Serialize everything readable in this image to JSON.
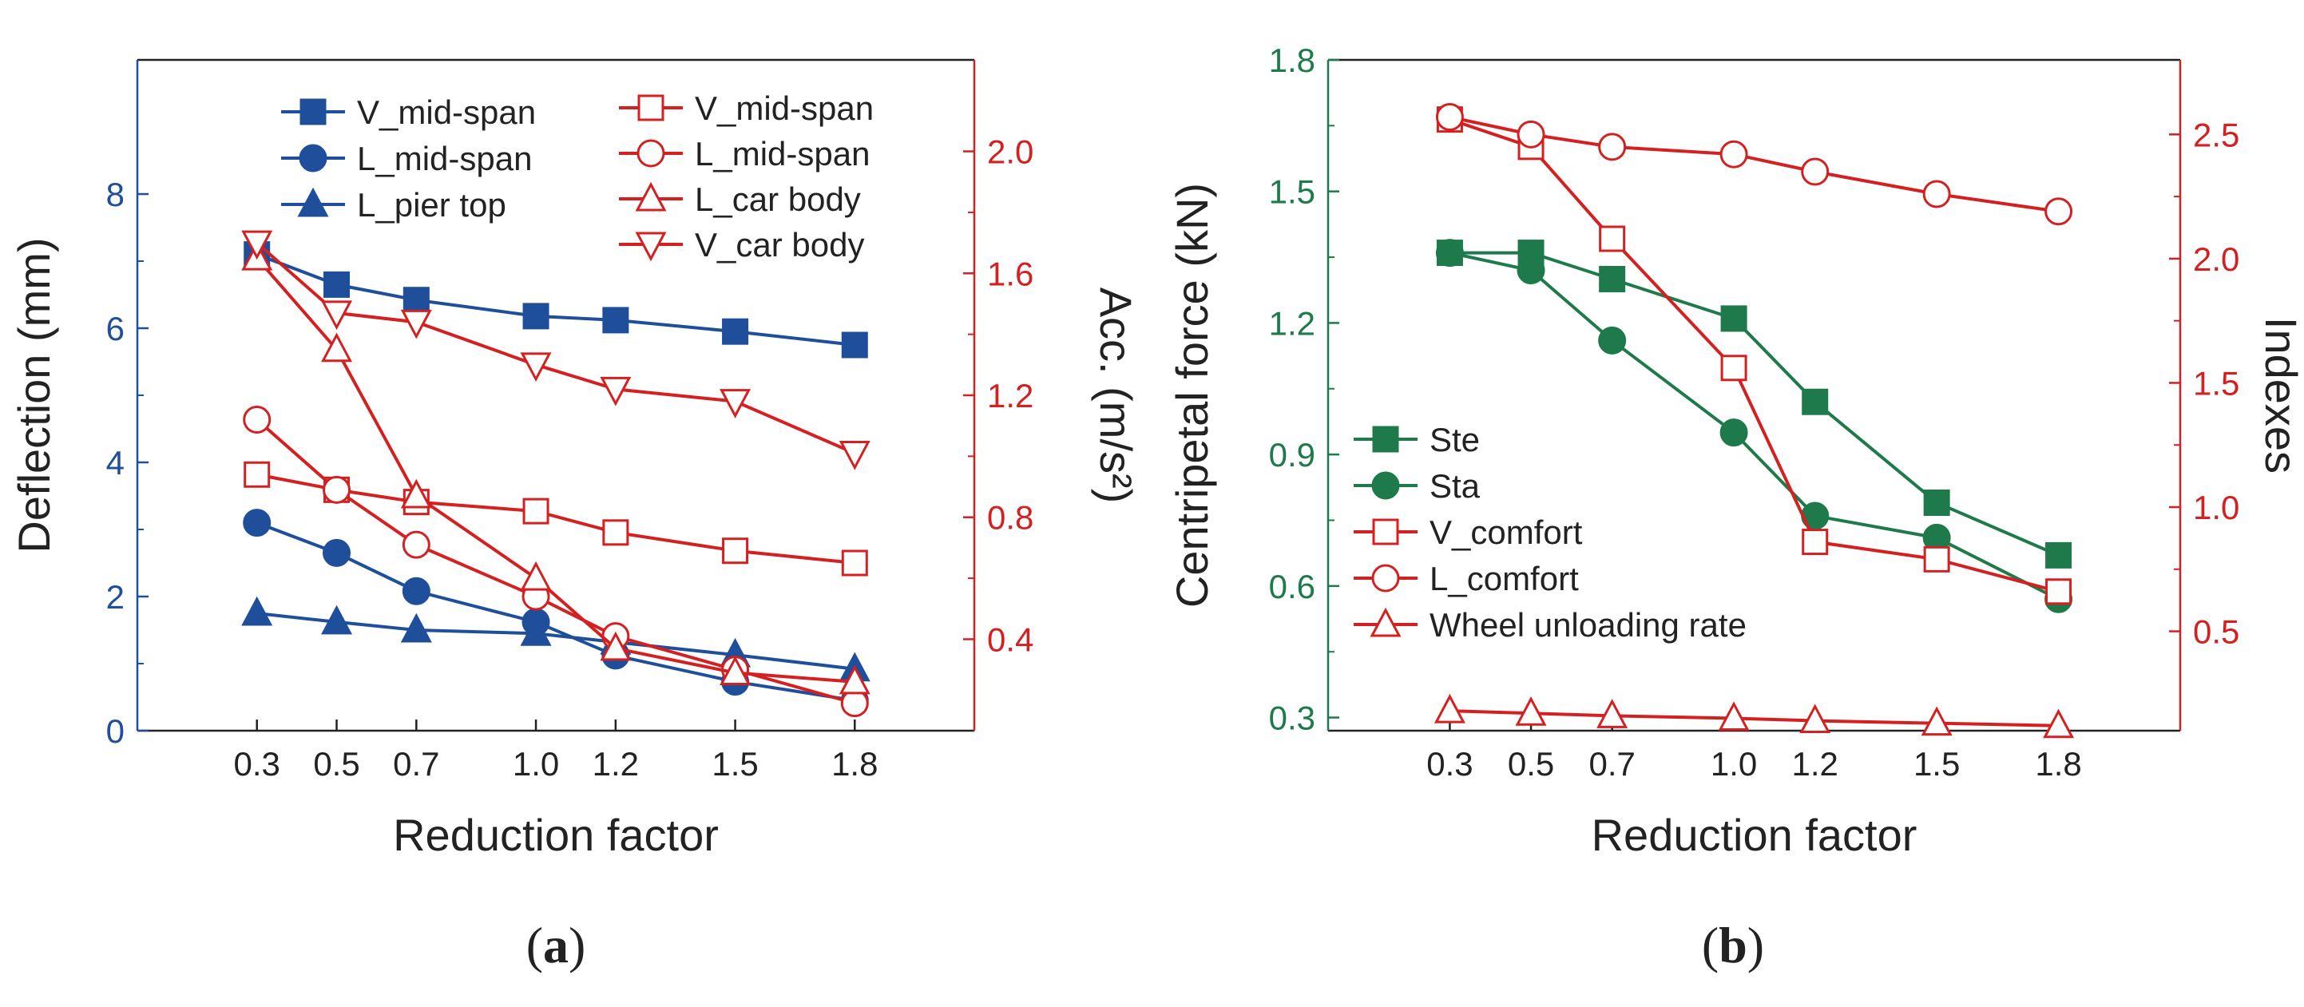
{
  "colors": {
    "blue": "#1f4e9b",
    "red": "#d42020",
    "green": "#1e7a4a",
    "black": "#222222"
  },
  "chart_data": [
    {
      "id": "a",
      "type": "line",
      "caption": "a",
      "xlabel": "Reduction factor",
      "ylabel_left": "Deflection (mm)",
      "ylabel_right": "Acc. (m/s²)",
      "x": [
        0.3,
        0.5,
        0.7,
        1.0,
        1.2,
        1.5,
        1.8
      ],
      "xticks": [
        "0.3",
        "0.5",
        "0.7",
        "1.0",
        "1.2",
        "1.5",
        "1.8"
      ],
      "ylim_left": [
        0,
        10
      ],
      "yticks_left": [
        "0",
        "2",
        "4",
        "6",
        "8"
      ],
      "ylim_right": [
        0.1,
        2.3
      ],
      "yticks_right": [
        "0.4",
        "0.8",
        "1.2",
        "1.6",
        "2.0"
      ],
      "series": [
        {
          "name": "V_mid-span",
          "axis": "left",
          "marker": "square",
          "filled": true,
          "color": "blue",
          "values": [
            7.1,
            6.65,
            6.42,
            6.18,
            6.12,
            5.95,
            5.75
          ]
        },
        {
          "name": "L_mid-span",
          "axis": "left",
          "marker": "circle",
          "filled": true,
          "color": "blue",
          "values": [
            3.1,
            2.65,
            2.08,
            1.62,
            1.12,
            0.73,
            0.45
          ]
        },
        {
          "name": "L_pier top",
          "axis": "left",
          "marker": "triangle-up",
          "filled": true,
          "color": "blue",
          "values": [
            1.75,
            1.62,
            1.5,
            1.45,
            1.32,
            1.13,
            0.92
          ]
        },
        {
          "name": "V_mid-span",
          "axis": "right",
          "marker": "square",
          "filled": false,
          "color": "red",
          "values": [
            0.94,
            0.89,
            0.85,
            0.82,
            0.75,
            0.69,
            0.65
          ]
        },
        {
          "name": "L_mid-span",
          "axis": "right",
          "marker": "circle",
          "filled": false,
          "color": "red",
          "values": [
            1.12,
            0.89,
            0.71,
            0.54,
            0.41,
            0.3,
            0.19
          ]
        },
        {
          "name": "L_car body",
          "axis": "right",
          "marker": "triangle-up",
          "filled": false,
          "color": "red",
          "values": [
            1.65,
            1.35,
            0.87,
            0.6,
            0.37,
            0.29,
            0.26
          ]
        },
        {
          "name": "V_car body",
          "axis": "right",
          "marker": "triangle-down",
          "filled": false,
          "color": "red",
          "values": [
            1.7,
            1.47,
            1.44,
            1.3,
            1.22,
            1.18,
            1.01
          ]
        }
      ]
    },
    {
      "id": "b",
      "type": "line",
      "caption": "b",
      "xlabel": "Reduction factor",
      "ylabel_left": "Centripetal force (kN)",
      "ylabel_right": "Indexes",
      "x": [
        0.3,
        0.5,
        0.7,
        1.0,
        1.2,
        1.5,
        1.8
      ],
      "xticks": [
        "0.3",
        "0.5",
        "0.7",
        "1.0",
        "1.2",
        "1.5",
        "1.8"
      ],
      "ylim_left": [
        0.27,
        1.8
      ],
      "yticks_left": [
        "0.3",
        "0.6",
        "0.9",
        "1.2",
        "1.5",
        "1.8"
      ],
      "ylim_right": [
        0.1,
        2.8
      ],
      "yticks_right": [
        "0.5",
        "1.0",
        "1.5",
        "2.0",
        "2.5"
      ],
      "series": [
        {
          "name": "Ste",
          "axis": "left",
          "marker": "square",
          "filled": true,
          "color": "green",
          "values": [
            1.36,
            1.36,
            1.3,
            1.21,
            1.02,
            0.79,
            0.67
          ]
        },
        {
          "name": "Sta",
          "axis": "left",
          "marker": "circle",
          "filled": true,
          "color": "green",
          "values": [
            1.36,
            1.32,
            1.16,
            0.95,
            0.76,
            0.71,
            0.57
          ]
        },
        {
          "name": "V_comfort",
          "axis": "right",
          "marker": "square",
          "filled": false,
          "color": "red",
          "values": [
            2.56,
            2.45,
            2.08,
            1.56,
            0.86,
            0.79,
            0.66
          ]
        },
        {
          "name": "L_comfort",
          "axis": "right",
          "marker": "circle",
          "filled": false,
          "color": "red",
          "values": [
            2.57,
            2.5,
            2.45,
            2.42,
            2.35,
            2.26,
            2.19
          ]
        },
        {
          "name": "Wheel unloading rate",
          "axis": "right",
          "marker": "triangle-up",
          "filled": false,
          "color": "red",
          "values": [
            0.18,
            0.17,
            0.16,
            0.15,
            0.14,
            0.13,
            0.12
          ]
        }
      ]
    }
  ]
}
